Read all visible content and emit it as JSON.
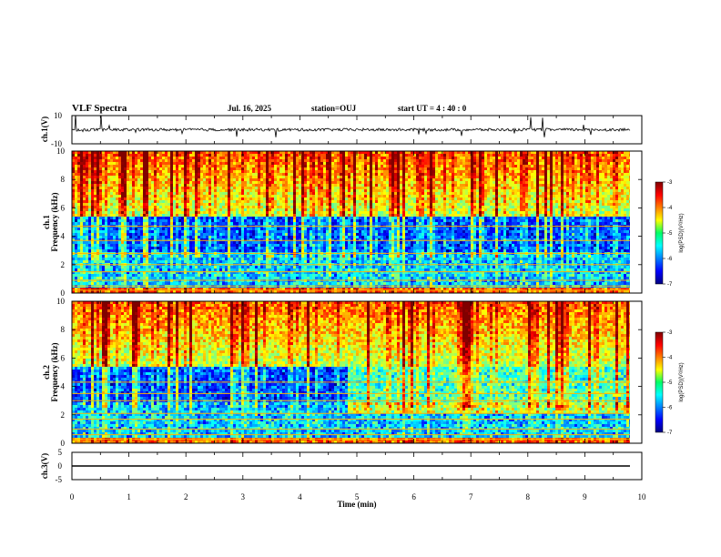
{
  "header": {
    "title": "VLF Spectra",
    "date": "Jul. 16, 2025",
    "station": "station=OUJ",
    "start": "start  UT =   4 : 40 : 0"
  },
  "colors": {
    "frame": "#000000"
  },
  "chart_data": [
    {
      "type": "line",
      "id": "ch1_waveform",
      "ylabel": "ch.1(V)",
      "ylim": [
        -10,
        10
      ],
      "yticks": [
        "10",
        "-10"
      ],
      "xlim": [
        0,
        10
      ],
      "baseline": 0,
      "noise": 2
    },
    {
      "type": "heatmap",
      "id": "ch1_spectrogram",
      "ylabel": "ch.1",
      "ylabel2": "Frequency  (kHz)",
      "ylim": [
        0,
        10
      ],
      "xlim": [
        0,
        10
      ],
      "yticks": [
        "0",
        "2",
        "4",
        "6",
        "8",
        "10"
      ],
      "colorbar": {
        "label": "log(PSD)(V²/Hz)",
        "range": [
          -7,
          -3
        ],
        "ticks": [
          "-3",
          "-4",
          "-5",
          "-6",
          "-7"
        ]
      }
    },
    {
      "type": "heatmap",
      "id": "ch2_spectrogram",
      "ylabel": "ch.2",
      "ylabel2": "Frequency  (kHz)",
      "ylim": [
        0,
        10
      ],
      "xlim": [
        0,
        10
      ],
      "yticks": [
        "0",
        "2",
        "4",
        "6",
        "8",
        "10"
      ],
      "colorbar": {
        "label": "log(PSD)(V²/Hz)",
        "range": [
          -7,
          -3
        ],
        "ticks": [
          "-3",
          "-4",
          "-5",
          "-6",
          "-7"
        ]
      }
    },
    {
      "type": "line",
      "id": "ch3_waveform",
      "ylabel": "ch.3(V)",
      "ylim": [
        -5,
        5
      ],
      "yticks": [
        "5",
        "0",
        "-5"
      ],
      "xlim": [
        0,
        10
      ],
      "baseline": 0,
      "noise": 0
    }
  ],
  "xaxis": {
    "label": "Time  (min)",
    "ticks": [
      "0",
      "1",
      "2",
      "3",
      "4",
      "5",
      "6",
      "7",
      "8",
      "9",
      "10"
    ]
  }
}
